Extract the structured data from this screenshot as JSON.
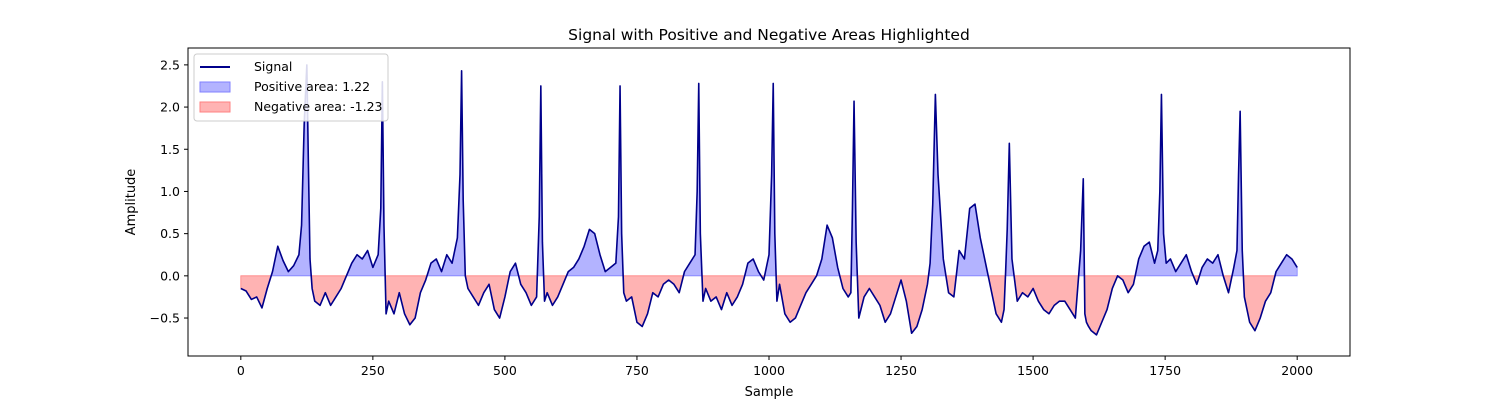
{
  "chart_data": {
    "type": "line",
    "title": "Signal with Positive and Negative Areas Highlighted",
    "xlabel": "Sample",
    "ylabel": "Amplitude",
    "xlim": [
      -100,
      2100
    ],
    "ylim": [
      -0.95,
      2.7
    ],
    "xticks": [
      0,
      250,
      500,
      750,
      1000,
      1250,
      1500,
      1750,
      2000
    ],
    "yticks": [
      -0.5,
      0.0,
      0.5,
      1.0,
      1.5,
      2.0,
      2.5
    ],
    "xtick_labels": [
      "0",
      "250",
      "500",
      "750",
      "1000",
      "1250",
      "1500",
      "1750",
      "2000"
    ],
    "ytick_labels": [
      "−0.5",
      "0.0",
      "0.5",
      "1.0",
      "1.5",
      "2.0",
      "2.5"
    ],
    "grid": false,
    "legend_position": "top-left",
    "series": [
      {
        "name": "Signal",
        "kind": "line",
        "color": "#00008b"
      },
      {
        "name": "Positive area: 1.22",
        "kind": "fill",
        "color": "#8080ff"
      },
      {
        "name": "Negative area: -1.23",
        "kind": "fill",
        "color": "#ff8080"
      }
    ],
    "x": [
      0,
      10,
      20,
      30,
      40,
      50,
      60,
      70,
      80,
      90,
      100,
      110,
      115,
      120,
      125,
      128,
      131,
      135,
      140,
      150,
      160,
      170,
      180,
      190,
      200,
      210,
      220,
      230,
      240,
      250,
      260,
      265,
      268,
      271,
      275,
      280,
      290,
      300,
      310,
      320,
      330,
      340,
      350,
      360,
      370,
      380,
      390,
      400,
      410,
      415,
      418,
      421,
      425,
      430,
      440,
      450,
      460,
      470,
      480,
      490,
      500,
      510,
      520,
      530,
      540,
      550,
      560,
      565,
      568,
      571,
      575,
      580,
      590,
      600,
      610,
      620,
      630,
      640,
      650,
      660,
      670,
      680,
      690,
      700,
      710,
      715,
      718,
      721,
      725,
      730,
      740,
      750,
      760,
      770,
      780,
      790,
      800,
      810,
      820,
      830,
      840,
      850,
      860,
      864,
      867,
      870,
      875,
      880,
      890,
      900,
      910,
      920,
      930,
      940,
      950,
      960,
      970,
      980,
      990,
      1000,
      1005,
      1008,
      1011,
      1015,
      1020,
      1030,
      1040,
      1050,
      1060,
      1070,
      1080,
      1090,
      1100,
      1110,
      1120,
      1130,
      1140,
      1150,
      1155,
      1158,
      1161,
      1165,
      1170,
      1180,
      1190,
      1200,
      1210,
      1220,
      1230,
      1240,
      1250,
      1260,
      1270,
      1280,
      1290,
      1300,
      1305,
      1310,
      1315,
      1320,
      1330,
      1340,
      1350,
      1360,
      1370,
      1380,
      1390,
      1400,
      1410,
      1420,
      1430,
      1440,
      1445,
      1448,
      1451,
      1455,
      1460,
      1470,
      1480,
      1490,
      1500,
      1510,
      1520,
      1530,
      1540,
      1550,
      1560,
      1570,
      1580,
      1590,
      1595,
      1598,
      1601,
      1605,
      1610,
      1620,
      1630,
      1640,
      1650,
      1660,
      1670,
      1680,
      1690,
      1700,
      1710,
      1720,
      1730,
      1736,
      1740,
      1743,
      1747,
      1752,
      1760,
      1770,
      1780,
      1790,
      1800,
      1810,
      1820,
      1830,
      1840,
      1850,
      1860,
      1870,
      1880,
      1886,
      1889,
      1892,
      1896,
      1900,
      1910,
      1920,
      1930,
      1940,
      1950,
      1960,
      1970,
      1980,
      1990,
      2000
    ],
    "y": [
      -0.15,
      -0.18,
      -0.28,
      -0.25,
      -0.38,
      -0.15,
      0.05,
      0.35,
      0.18,
      0.05,
      0.12,
      0.25,
      0.6,
      1.8,
      2.5,
      1.3,
      0.2,
      -0.15,
      -0.3,
      -0.35,
      -0.2,
      -0.35,
      -0.25,
      -0.15,
      0.0,
      0.15,
      0.25,
      0.2,
      0.3,
      0.1,
      0.25,
      0.8,
      2.3,
      0.6,
      -0.45,
      -0.3,
      -0.45,
      -0.2,
      -0.45,
      -0.58,
      -0.5,
      -0.2,
      -0.05,
      0.15,
      0.2,
      0.05,
      0.25,
      0.15,
      0.45,
      1.2,
      2.43,
      0.9,
      0.0,
      -0.15,
      -0.25,
      -0.35,
      -0.2,
      -0.1,
      -0.4,
      -0.5,
      -0.25,
      0.05,
      0.15,
      -0.1,
      -0.2,
      -0.35,
      -0.25,
      0.7,
      2.25,
      0.4,
      -0.3,
      -0.2,
      -0.35,
      -0.25,
      -0.1,
      0.05,
      0.1,
      0.2,
      0.35,
      0.55,
      0.5,
      0.25,
      0.05,
      0.1,
      0.15,
      0.7,
      2.25,
      0.5,
      -0.2,
      -0.3,
      -0.25,
      -0.55,
      -0.6,
      -0.45,
      -0.2,
      -0.25,
      -0.1,
      -0.05,
      -0.1,
      -0.2,
      0.05,
      0.15,
      0.25,
      1.0,
      2.28,
      0.5,
      -0.3,
      -0.15,
      -0.3,
      -0.25,
      -0.4,
      -0.2,
      -0.35,
      -0.25,
      -0.1,
      0.15,
      0.2,
      0.05,
      -0.05,
      0.25,
      1.2,
      2.28,
      0.5,
      -0.3,
      -0.1,
      -0.45,
      -0.55,
      -0.5,
      -0.35,
      -0.2,
      -0.1,
      0.0,
      0.2,
      0.6,
      0.45,
      0.1,
      -0.15,
      -0.25,
      -0.2,
      0.8,
      2.07,
      0.4,
      -0.5,
      -0.25,
      -0.15,
      -0.25,
      -0.35,
      -0.55,
      -0.45,
      -0.25,
      -0.05,
      -0.3,
      -0.68,
      -0.6,
      -0.4,
      -0.1,
      0.15,
      0.85,
      2.15,
      1.2,
      0.2,
      -0.2,
      -0.25,
      0.3,
      0.2,
      0.8,
      0.85,
      0.45,
      0.15,
      -0.15,
      -0.45,
      -0.55,
      -0.4,
      0.05,
      0.55,
      1.57,
      0.2,
      -0.3,
      -0.2,
      -0.25,
      -0.15,
      -0.3,
      -0.4,
      -0.45,
      -0.35,
      -0.3,
      -0.3,
      -0.4,
      -0.5,
      0.3,
      1.15,
      -0.45,
      -0.55,
      -0.6,
      -0.65,
      -0.7,
      -0.55,
      -0.4,
      -0.15,
      0.0,
      -0.05,
      -0.2,
      -0.1,
      0.2,
      0.35,
      0.4,
      0.15,
      0.3,
      1.0,
      2.15,
      0.5,
      0.15,
      0.2,
      0.05,
      0.15,
      0.25,
      0.05,
      -0.1,
      0.1,
      0.2,
      0.15,
      0.25,
      0.0,
      -0.2,
      0.1,
      0.3,
      1.2,
      1.95,
      0.3,
      -0.25,
      -0.55,
      -0.65,
      -0.5,
      -0.3,
      -0.2,
      0.05,
      0.15,
      0.25,
      0.2,
      0.1
    ]
  }
}
